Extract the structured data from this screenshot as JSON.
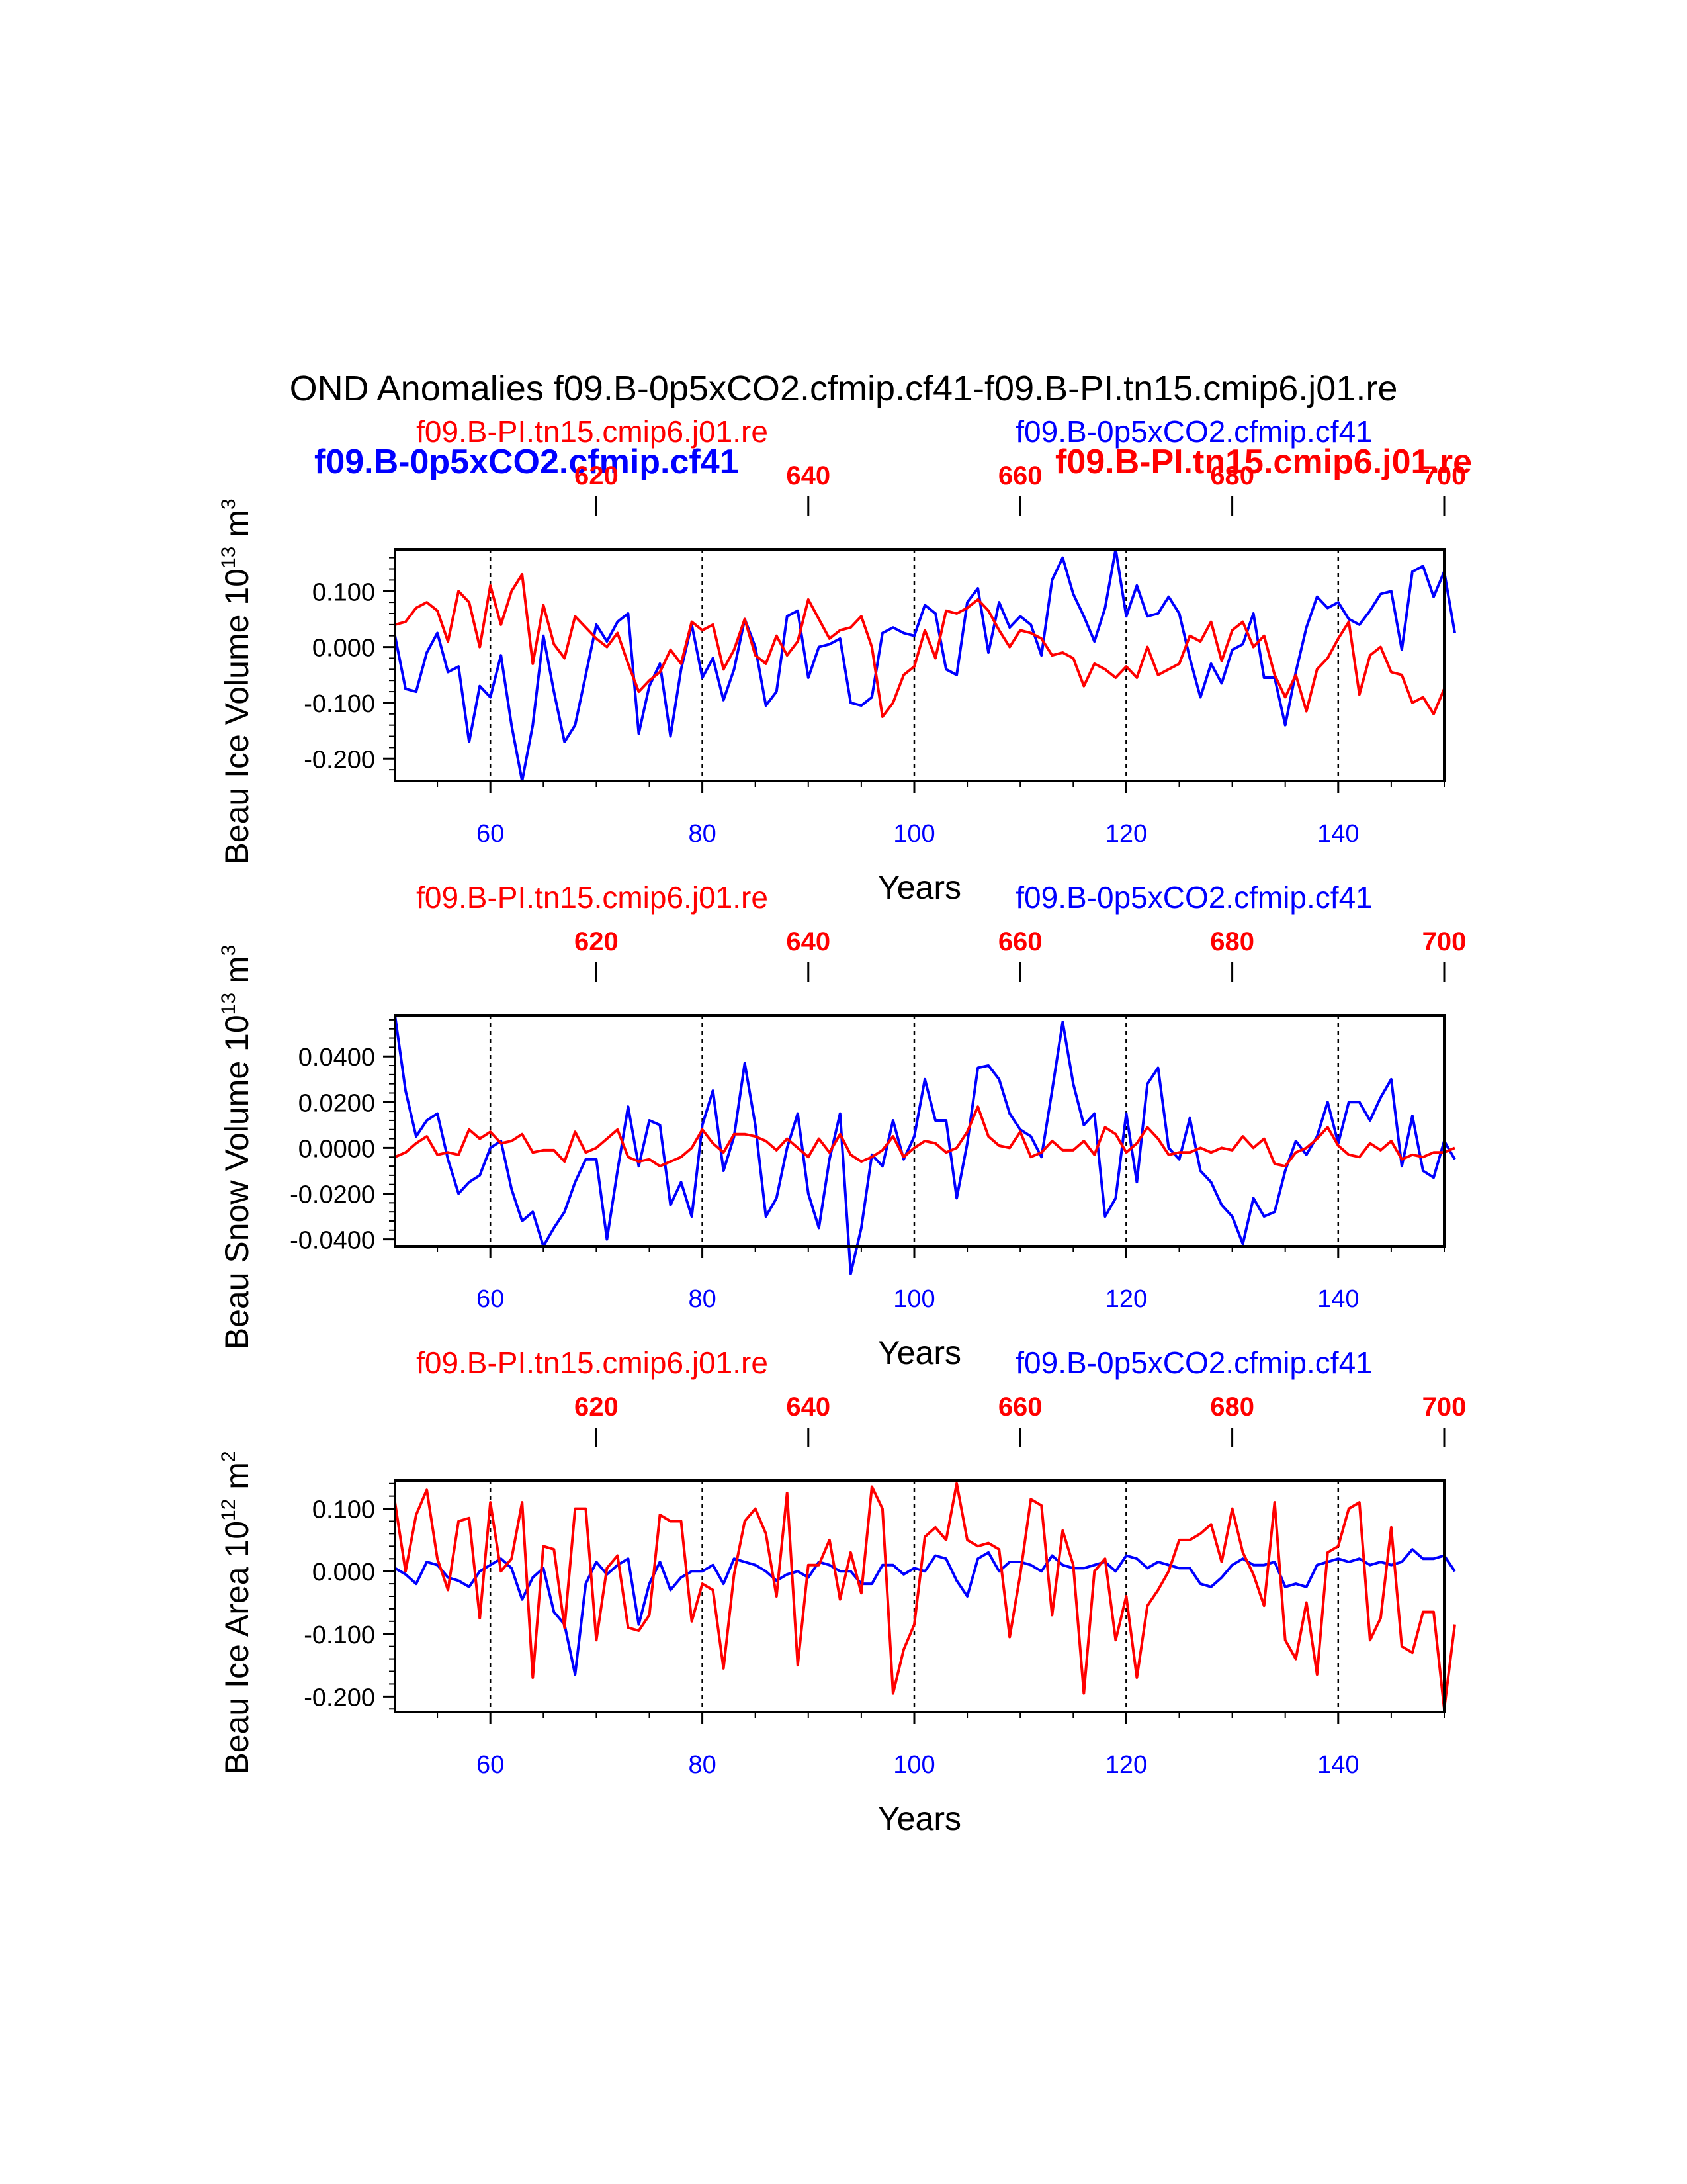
{
  "figure": {
    "title": "OND Anomalies f09.B-0p5xCO2.cfmip.cf41-f09.B-PI.tn15.cmip6.j01.re",
    "overlay_labels": {
      "left": "f09.B-0p5xCO2.cfmip.cf41",
      "right": "f09.B-PI.tn15.cmip6.j01.re"
    }
  },
  "colors": {
    "blue": "#0000ff",
    "red": "#ff0000",
    "black": "#000000"
  },
  "chart_data": [
    {
      "type": "line",
      "ylabel_main": "Beau Ice Volume 10",
      "ylabel_exp": "13",
      "ylabel_unit": " m",
      "ylabel_unit_exp": "3",
      "xlabel": "Years",
      "title_left": "f09.B-PI.tn15.cmip6.j01.re",
      "title_right": "f09.B-0p5xCO2.cfmip.cf41",
      "xlim_bottom": [
        51,
        150
      ],
      "xlim_top": [
        601,
        700
      ],
      "xticks_bottom": [
        "60",
        "80",
        "100",
        "120",
        "140"
      ],
      "xticks_top": [
        "620",
        "640",
        "660",
        "680",
        "700"
      ],
      "ylim": [
        -0.24,
        0.175
      ],
      "yticks": [
        "0.100",
        "0.000",
        "-0.100",
        "-0.200"
      ],
      "ytick_values": [
        0.1,
        0.0,
        -0.1,
        -0.2
      ],
      "vlines": [
        60,
        80,
        100,
        120,
        140
      ],
      "series": [
        {
          "name": "f09.B-0p5xCO2.cfmip.cf41",
          "color": "blue",
          "values": [
            0.02,
            -0.075,
            -0.08,
            -0.01,
            0.025,
            -0.045,
            -0.035,
            -0.17,
            -0.07,
            -0.09,
            -0.015,
            -0.14,
            -0.24,
            -0.14,
            0.02,
            -0.08,
            -0.17,
            -0.14,
            -0.05,
            0.04,
            0.01,
            0.045,
            0.06,
            -0.155,
            -0.07,
            -0.03,
            -0.16,
            -0.04,
            0.04,
            -0.055,
            -0.02,
            -0.095,
            -0.04,
            0.05,
            0.0,
            -0.105,
            -0.08,
            0.055,
            0.065,
            -0.055,
            0.0,
            0.005,
            0.015,
            -0.1,
            -0.105,
            -0.09,
            0.025,
            0.035,
            0.025,
            0.02,
            0.075,
            0.06,
            -0.04,
            -0.05,
            0.08,
            0.105,
            -0.01,
            0.08,
            0.035,
            0.055,
            0.04,
            -0.015,
            0.12,
            0.16,
            0.095,
            0.055,
            0.01,
            0.07,
            0.175,
            0.055,
            0.11,
            0.055,
            0.06,
            0.09,
            0.06,
            -0.02,
            -0.09,
            -0.03,
            -0.065,
            -0.005,
            0.005,
            0.06,
            -0.055,
            -0.055,
            -0.14,
            -0.045,
            0.035,
            0.09,
            0.07,
            0.08,
            0.05,
            0.04,
            0.065,
            0.095,
            0.1,
            -0.005,
            0.135,
            0.145,
            0.09,
            0.135,
            0.025
          ]
        },
        {
          "name": "f09.B-PI.tn15.cmip6.j01.re",
          "color": "red",
          "values": [
            0.04,
            0.045,
            0.07,
            0.08,
            0.065,
            0.01,
            0.1,
            0.08,
            0.0,
            0.11,
            0.04,
            0.1,
            0.13,
            -0.03,
            0.075,
            0.005,
            -0.02,
            0.055,
            0.035,
            0.015,
            0.0,
            0.025,
            -0.03,
            -0.08,
            -0.06,
            -0.045,
            -0.005,
            -0.03,
            0.045,
            0.03,
            0.04,
            -0.04,
            -0.005,
            0.05,
            -0.015,
            -0.03,
            0.02,
            -0.015,
            0.01,
            0.085,
            0.05,
            0.015,
            0.03,
            0.035,
            0.055,
            0.0,
            -0.125,
            -0.1,
            -0.05,
            -0.035,
            0.03,
            -0.02,
            0.065,
            0.06,
            0.07,
            0.085,
            0.065,
            0.03,
            0.0,
            0.03,
            0.025,
            0.015,
            -0.015,
            -0.01,
            -0.02,
            -0.07,
            -0.03,
            -0.04,
            -0.055,
            -0.035,
            -0.055,
            0.0,
            -0.05,
            -0.04,
            -0.03,
            0.02,
            0.01,
            0.045,
            -0.025,
            0.03,
            0.045,
            0.0,
            0.02,
            -0.05,
            -0.09,
            -0.05,
            -0.115,
            -0.04,
            -0.02,
            0.015,
            0.045,
            -0.085,
            -0.015,
            0.0,
            -0.045,
            -0.05,
            -0.1,
            -0.09,
            -0.12,
            -0.075
          ]
        }
      ]
    },
    {
      "type": "line",
      "ylabel_main": "Beau Snow Volume 10",
      "ylabel_exp": "13",
      "ylabel_unit": " m",
      "ylabel_unit_exp": "3",
      "xlabel": "Years",
      "title_left": "f09.B-PI.tn15.cmip6.j01.re",
      "title_right": "f09.B-0p5xCO2.cfmip.cf41",
      "xlim_bottom": [
        51,
        150
      ],
      "xlim_top": [
        601,
        700
      ],
      "xticks_bottom": [
        "60",
        "80",
        "100",
        "120",
        "140"
      ],
      "xticks_top": [
        "620",
        "640",
        "660",
        "680",
        "700"
      ],
      "ylim": [
        -0.043,
        0.058
      ],
      "yticks": [
        "0.0400",
        "0.0200",
        "0.0000",
        "-0.0200",
        "-0.0400"
      ],
      "ytick_values": [
        0.04,
        0.02,
        0.0,
        -0.02,
        -0.04
      ],
      "vlines": [
        60,
        80,
        100,
        120,
        140
      ],
      "series": [
        {
          "name": "f09.B-0p5xCO2.cfmip.cf41",
          "color": "blue",
          "values": [
            0.058,
            0.025,
            0.005,
            0.012,
            0.015,
            -0.005,
            -0.02,
            -0.015,
            -0.012,
            0.0,
            0.003,
            -0.018,
            -0.032,
            -0.028,
            -0.043,
            -0.035,
            -0.028,
            -0.015,
            -0.005,
            -0.005,
            -0.04,
            -0.01,
            0.018,
            -0.008,
            0.012,
            0.01,
            -0.025,
            -0.015,
            -0.03,
            0.01,
            0.025,
            -0.01,
            0.005,
            0.037,
            0.01,
            -0.03,
            -0.022,
            0.0,
            0.015,
            -0.02,
            -0.035,
            -0.005,
            0.015,
            -0.055,
            -0.035,
            -0.003,
            -0.008,
            0.012,
            -0.005,
            0.005,
            0.03,
            0.012,
            0.012,
            -0.022,
            0.002,
            0.035,
            0.036,
            0.03,
            0.015,
            0.008,
            0.005,
            -0.004,
            0.025,
            0.055,
            0.028,
            0.01,
            0.015,
            -0.03,
            -0.022,
            0.015,
            -0.015,
            0.028,
            0.035,
            0.0,
            -0.005,
            0.013,
            -0.01,
            -0.015,
            -0.025,
            -0.03,
            -0.042,
            -0.022,
            -0.03,
            -0.028,
            -0.01,
            0.003,
            -0.003,
            0.005,
            0.02,
            0.002,
            0.02,
            0.02,
            0.012,
            0.022,
            0.03,
            -0.008,
            0.014,
            -0.01,
            -0.013,
            0.003,
            -0.005
          ]
        },
        {
          "name": "f09.B-PI.tn15.cmip6.j01.re",
          "color": "red",
          "values": [
            -0.004,
            -0.002,
            0.002,
            0.005,
            -0.003,
            -0.002,
            -0.003,
            0.008,
            0.004,
            0.007,
            0.002,
            0.003,
            0.006,
            -0.002,
            -0.001,
            -0.001,
            -0.006,
            0.007,
            -0.002,
            0.0,
            0.004,
            0.008,
            -0.004,
            -0.006,
            -0.005,
            -0.008,
            -0.006,
            -0.004,
            0.0,
            0.008,
            0.002,
            -0.002,
            0.006,
            0.006,
            0.005,
            0.003,
            -0.001,
            0.004,
            0.0,
            -0.004,
            0.004,
            -0.002,
            0.006,
            -0.003,
            -0.006,
            -0.004,
            -0.001,
            0.005,
            -0.004,
            0.0,
            0.003,
            0.002,
            -0.002,
            0.0,
            0.007,
            0.018,
            0.005,
            0.001,
            0.0,
            0.007,
            -0.004,
            -0.002,
            0.003,
            -0.001,
            -0.001,
            0.003,
            -0.003,
            0.009,
            0.006,
            -0.002,
            0.002,
            0.009,
            0.004,
            -0.003,
            -0.002,
            -0.002,
            0.0,
            -0.002,
            0.0,
            -0.001,
            0.005,
            0.0,
            0.004,
            -0.007,
            -0.008,
            -0.002,
            0.0,
            0.004,
            0.009,
            0.001,
            -0.003,
            -0.004,
            0.002,
            -0.001,
            0.003,
            -0.005,
            -0.003,
            -0.004,
            -0.002,
            -0.002,
            0.0
          ]
        }
      ]
    },
    {
      "type": "line",
      "ylabel_main": "Beau Ice Area 10",
      "ylabel_exp": "12",
      "ylabel_unit": " m",
      "ylabel_unit_exp": "2",
      "xlabel": "Years",
      "title_left": "f09.B-PI.tn15.cmip6.j01.re",
      "title_right": "f09.B-0p5xCO2.cfmip.cf41",
      "xlim_bottom": [
        51,
        150
      ],
      "xlim_top": [
        601,
        700
      ],
      "xticks_bottom": [
        "60",
        "80",
        "100",
        "120",
        "140"
      ],
      "xticks_top": [
        "620",
        "640",
        "660",
        "680",
        "700"
      ],
      "ylim": [
        -0.225,
        0.145
      ],
      "yticks": [
        "0.100",
        "0.000",
        "-0.100",
        "-0.200"
      ],
      "ytick_values": [
        0.1,
        0.0,
        -0.1,
        -0.2
      ],
      "vlines": [
        60,
        80,
        100,
        120,
        140
      ],
      "series": [
        {
          "name": "f09.B-0p5xCO2.cfmip.cf41",
          "color": "blue",
          "values": [
            0.005,
            -0.005,
            -0.02,
            0.015,
            0.01,
            -0.01,
            -0.015,
            -0.025,
            0.0,
            0.01,
            0.02,
            0.005,
            -0.045,
            -0.01,
            0.005,
            -0.065,
            -0.085,
            -0.165,
            -0.02,
            0.015,
            -0.005,
            0.01,
            0.02,
            -0.085,
            -0.02,
            0.015,
            -0.03,
            -0.01,
            0.0,
            0.0,
            0.01,
            -0.02,
            0.02,
            0.015,
            0.01,
            0.0,
            -0.015,
            -0.005,
            0.0,
            -0.01,
            0.015,
            0.01,
            0.0,
            0.0,
            -0.02,
            -0.02,
            0.01,
            0.01,
            -0.005,
            0.005,
            0.0,
            0.025,
            0.02,
            -0.015,
            -0.04,
            0.02,
            0.03,
            0.0,
            0.015,
            0.015,
            0.01,
            0.0,
            0.025,
            0.01,
            0.005,
            0.005,
            0.01,
            0.015,
            0.0,
            0.025,
            0.02,
            0.005,
            0.015,
            0.01,
            0.005,
            0.005,
            -0.02,
            -0.025,
            -0.01,
            0.01,
            0.02,
            0.01,
            0.01,
            0.015,
            -0.025,
            -0.02,
            -0.025,
            0.01,
            0.015,
            0.02,
            0.015,
            0.02,
            0.01,
            0.015,
            0.01,
            0.015,
            0.035,
            0.02,
            0.02,
            0.025,
            0.0
          ]
        },
        {
          "name": "f09.B-PI.tn15.cmip6.j01.re",
          "color": "red",
          "values": [
            0.11,
            0.0,
            0.09,
            0.13,
            0.02,
            -0.03,
            0.08,
            0.085,
            -0.075,
            0.11,
            0.0,
            0.02,
            0.11,
            -0.17,
            0.04,
            0.035,
            -0.09,
            0.1,
            0.1,
            -0.11,
            0.005,
            0.025,
            -0.09,
            -0.095,
            -0.07,
            0.09,
            0.08,
            0.08,
            -0.08,
            -0.02,
            -0.03,
            -0.155,
            -0.005,
            0.08,
            0.1,
            0.06,
            -0.04,
            0.125,
            -0.15,
            0.01,
            0.01,
            0.05,
            -0.045,
            0.03,
            -0.035,
            0.135,
            0.1,
            -0.195,
            -0.125,
            -0.085,
            0.055,
            0.07,
            0.05,
            0.14,
            0.05,
            0.04,
            0.045,
            0.035,
            -0.105,
            -0.005,
            0.115,
            0.105,
            -0.07,
            0.065,
            0.01,
            -0.195,
            0.0,
            0.02,
            -0.11,
            -0.04,
            -0.17,
            -0.055,
            -0.03,
            0.0,
            0.05,
            0.05,
            0.06,
            0.075,
            0.015,
            0.1,
            0.03,
            -0.005,
            -0.055,
            0.11,
            -0.11,
            -0.14,
            -0.05,
            -0.165,
            0.03,
            0.04,
            0.1,
            0.11,
            -0.11,
            -0.075,
            0.07,
            -0.12,
            -0.13,
            -0.065,
            -0.065,
            -0.22,
            -0.085
          ]
        }
      ]
    }
  ]
}
